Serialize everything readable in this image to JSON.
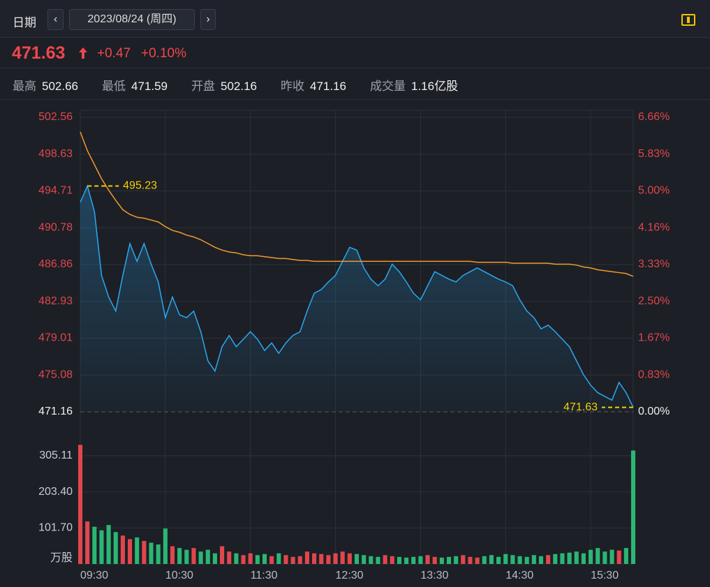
{
  "header": {
    "date_label": "日期",
    "date": "2023/08/24 (周四)",
    "price": "471.63",
    "change": "+0.47",
    "change_pct": "+0.10%"
  },
  "stats": [
    {
      "label": "最高",
      "value": "502.66"
    },
    {
      "label": "最低",
      "value": "471.59"
    },
    {
      "label": "开盘",
      "value": "502.16"
    },
    {
      "label": "昨收",
      "value": "471.16"
    },
    {
      "label": "成交量",
      "value": "1.16亿股"
    }
  ],
  "chart_data": {
    "type": "intraday",
    "categories": [
      "09:30",
      null,
      null,
      null,
      null,
      null,
      null,
      null,
      null,
      null,
      null,
      null,
      "10:30",
      null,
      null,
      null,
      null,
      null,
      null,
      null,
      null,
      null,
      null,
      null,
      "11:30",
      null,
      null,
      null,
      null,
      null,
      null,
      null,
      null,
      null,
      null,
      null,
      "12:30",
      null,
      null,
      null,
      null,
      null,
      null,
      null,
      null,
      null,
      null,
      null,
      "13:30",
      null,
      null,
      null,
      null,
      null,
      null,
      null,
      null,
      null,
      null,
      null,
      "14:30",
      null,
      null,
      null,
      null,
      null,
      null,
      null,
      null,
      null,
      null,
      null,
      "15:30",
      null,
      null,
      null,
      null,
      null,
      null
    ],
    "series": [
      {
        "name": "price",
        "color": "#2aa9f2",
        "values": [
          493.5,
          495.23,
          492.5,
          485.7,
          483.4,
          481.9,
          485.7,
          489.1,
          487.2,
          489.1,
          486.9,
          485.0,
          481.2,
          483.4,
          481.5,
          481.2,
          481.9,
          479.7,
          476.6,
          475.5,
          478.1,
          479.3,
          478.1,
          478.9,
          479.7,
          478.9,
          477.7,
          478.5,
          477.4,
          478.5,
          479.3,
          479.7,
          481.9,
          483.8,
          484.2,
          485.0,
          485.7,
          487.2,
          488.7,
          488.4,
          486.5,
          485.3,
          484.6,
          485.3,
          486.9,
          486.1,
          485.0,
          483.8,
          483.1,
          484.6,
          486.1,
          485.7,
          485.3,
          485.0,
          485.7,
          486.1,
          486.5,
          486.1,
          485.7,
          485.3,
          485.0,
          484.6,
          483.1,
          481.9,
          481.2,
          480.0,
          480.4,
          479.7,
          478.9,
          478.1,
          476.6,
          475.1,
          474.0,
          473.2,
          472.8,
          472.4,
          474.3,
          473.2,
          471.63
        ]
      },
      {
        "name": "average",
        "color": "#f29a2e",
        "values": [
          501.0,
          499.0,
          497.5,
          496.0,
          494.8,
          493.7,
          492.7,
          492.2,
          491.9,
          491.8,
          491.6,
          491.4,
          490.9,
          490.5,
          490.3,
          490.0,
          489.8,
          489.5,
          489.1,
          488.7,
          488.4,
          488.2,
          488.1,
          487.9,
          487.8,
          487.8,
          487.7,
          487.6,
          487.5,
          487.5,
          487.4,
          487.3,
          487.3,
          487.2,
          487.2,
          487.2,
          487.2,
          487.2,
          487.2,
          487.2,
          487.2,
          487.2,
          487.2,
          487.2,
          487.2,
          487.2,
          487.2,
          487.2,
          487.2,
          487.2,
          487.2,
          487.2,
          487.2,
          487.2,
          487.2,
          487.2,
          487.1,
          487.1,
          487.1,
          487.1,
          487.1,
          487.0,
          487.0,
          487.0,
          487.0,
          487.0,
          487.0,
          486.9,
          486.9,
          486.9,
          486.8,
          486.6,
          486.5,
          486.3,
          486.2,
          486.1,
          486.0,
          485.9,
          485.6
        ]
      }
    ],
    "ylim": [
      471.16,
      502.56
    ],
    "yticks": [
      502.56,
      498.63,
      494.71,
      490.78,
      486.86,
      482.93,
      479.01,
      475.08,
      471.16
    ],
    "y2lim": [
      0,
      6.66
    ],
    "y2ticks": [
      {
        "value": 6.66,
        "label": "6.66%"
      },
      {
        "value": 5.83,
        "label": "5.83%"
      },
      {
        "value": 5,
        "label": "5.00%"
      },
      {
        "value": 4.16,
        "label": "4.16%"
      },
      {
        "value": 3.33,
        "label": "3.33%"
      },
      {
        "value": 2.5,
        "label": "2.50%"
      },
      {
        "value": 1.67,
        "label": "1.67%"
      },
      {
        "value": 0.83,
        "label": "0.83%"
      },
      {
        "value": 0,
        "label": "0.00%"
      }
    ],
    "annotations": [
      495.23,
      471.63
    ],
    "up_color": "#e0474c",
    "down_color": "#2bb673",
    "volume": {
      "unit": "万股",
      "ylim": [
        0,
        305.11
      ],
      "yticks": [
        305.11,
        {
          "value": 203.4,
          "label": "203.40"
        },
        {
          "value": 101.7,
          "label": "101.70"
        }
      ],
      "values": [
        336,
        120,
        105,
        95,
        110,
        90,
        80,
        70,
        75,
        65,
        60,
        55,
        100,
        50,
        45,
        40,
        45,
        35,
        40,
        30,
        50,
        35,
        30,
        25,
        30,
        25,
        28,
        22,
        30,
        25,
        20,
        22,
        35,
        30,
        28,
        25,
        30,
        35,
        30,
        28,
        25,
        22,
        20,
        25,
        22,
        20,
        18,
        20,
        22,
        25,
        20,
        18,
        20,
        22,
        25,
        20,
        18,
        22,
        25,
        20,
        28,
        25,
        22,
        20,
        25,
        22,
        25,
        28,
        30,
        32,
        35,
        30,
        40,
        45,
        35,
        40,
        38,
        45,
        320
      ]
    }
  }
}
